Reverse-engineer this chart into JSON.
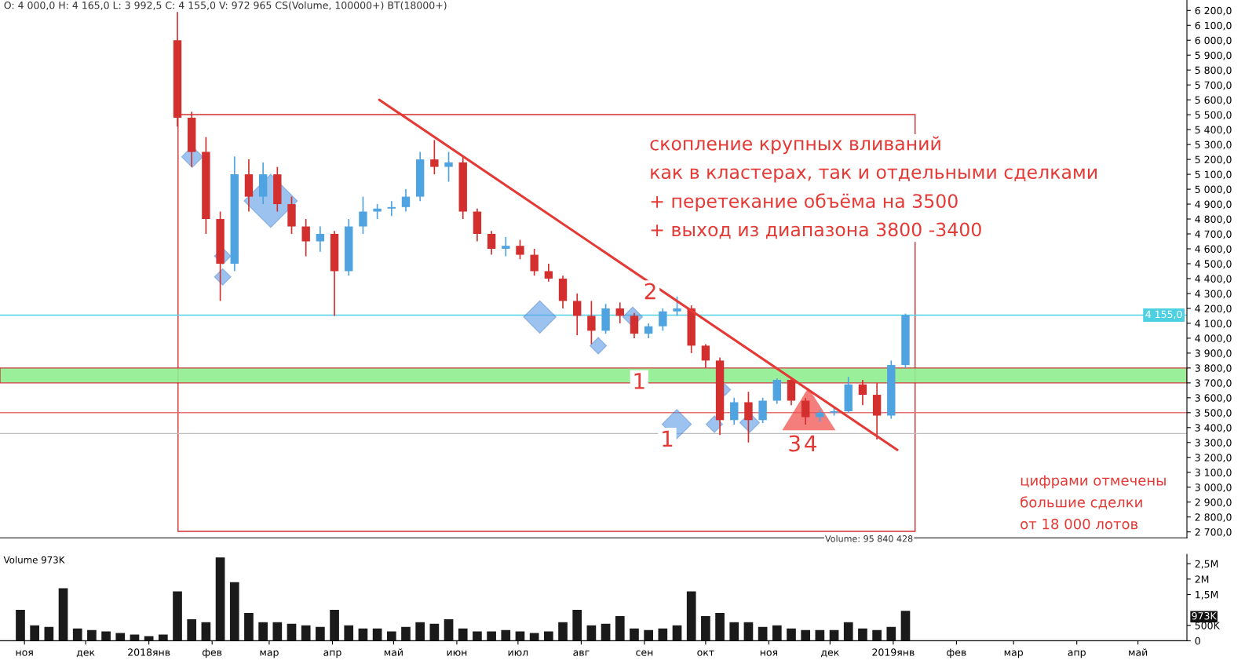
{
  "chart_data": [
    {
      "type": "candlestick",
      "x": [
        "2018-01-15",
        "2018-01-22",
        "2018-01-29",
        "2018-02-05",
        "2018-02-12",
        "2018-02-19",
        "2018-02-26",
        "2018-03-05",
        "2018-03-12",
        "2018-03-19",
        "2018-03-26",
        "2018-04-02",
        "2018-04-09",
        "2018-04-16",
        "2018-04-23",
        "2018-04-30",
        "2018-05-07",
        "2018-05-14",
        "2018-05-21",
        "2018-05-28",
        "2018-06-04",
        "2018-06-11",
        "2018-06-18",
        "2018-06-25",
        "2018-07-02",
        "2018-07-09",
        "2018-07-16",
        "2018-07-23",
        "2018-07-30",
        "2018-08-06",
        "2018-08-13",
        "2018-08-20",
        "2018-08-27",
        "2018-09-03",
        "2018-09-10",
        "2018-09-17",
        "2018-09-24",
        "2018-10-01",
        "2018-10-08",
        "2018-10-15",
        "2018-10-22",
        "2018-10-29",
        "2018-11-05",
        "2018-11-12",
        "2018-11-19",
        "2018-11-26",
        "2018-12-03",
        "2018-12-10",
        "2018-12-17",
        "2018-12-24",
        "2018-12-31",
        "2019-01-07"
      ],
      "ohlc": [
        [
          6000,
          6190,
          5420,
          5480
        ],
        [
          5480,
          5520,
          5150,
          5250
        ],
        [
          5250,
          5350,
          4700,
          4800
        ],
        [
          4800,
          4850,
          4250,
          4500
        ],
        [
          4500,
          5220,
          4450,
          5100
        ],
        [
          5100,
          5200,
          4850,
          4950
        ],
        [
          4950,
          5180,
          4900,
          5100
        ],
        [
          5100,
          5150,
          4850,
          4900
        ],
        [
          4900,
          4950,
          4700,
          4750
        ],
        [
          4750,
          4800,
          4550,
          4650
        ],
        [
          4650,
          4750,
          4580,
          4700
        ],
        [
          4700,
          4720,
          4150,
          4450
        ],
        [
          4450,
          4800,
          4420,
          4750
        ],
        [
          4750,
          4950,
          4700,
          4850
        ],
        [
          4850,
          4900,
          4800,
          4870
        ],
        [
          4870,
          4920,
          4820,
          4880
        ],
        [
          4880,
          5000,
          4850,
          4950
        ],
        [
          4950,
          5250,
          4920,
          5200
        ],
        [
          5200,
          5330,
          5100,
          5150
        ],
        [
          5150,
          5250,
          5050,
          5180
        ],
        [
          5180,
          5220,
          4800,
          4850
        ],
        [
          4850,
          4870,
          4650,
          4700
        ],
        [
          4700,
          4720,
          4560,
          4600
        ],
        [
          4600,
          4680,
          4550,
          4620
        ],
        [
          4620,
          4660,
          4530,
          4560
        ],
        [
          4560,
          4600,
          4420,
          4450
        ],
        [
          4450,
          4500,
          4380,
          4400
        ],
        [
          4400,
          4420,
          4200,
          4250
        ],
        [
          4250,
          4300,
          4020,
          4150
        ],
        [
          4150,
          4250,
          3960,
          4050
        ],
        [
          4050,
          4230,
          4030,
          4200
        ],
        [
          4200,
          4240,
          4100,
          4150
        ],
        [
          4150,
          4170,
          4000,
          4030
        ],
        [
          4030,
          4100,
          4000,
          4080
        ],
        [
          4080,
          4200,
          4050,
          4180
        ],
        [
          4180,
          4280,
          4150,
          4200
        ],
        [
          4200,
          4220,
          3900,
          3950
        ],
        [
          3950,
          3960,
          3800,
          3850
        ],
        [
          3850,
          3870,
          3350,
          3450
        ],
        [
          3450,
          3600,
          3420,
          3570
        ],
        [
          3570,
          3640,
          3300,
          3450
        ],
        [
          3450,
          3600,
          3430,
          3580
        ],
        [
          3580,
          3730,
          3560,
          3720
        ],
        [
          3720,
          3730,
          3550,
          3580
        ],
        [
          3580,
          3600,
          3420,
          3470
        ],
        [
          3470,
          3520,
          3440,
          3500
        ],
        [
          3500,
          3530,
          3480,
          3510
        ],
        [
          3510,
          3740,
          3500,
          3690
        ],
        [
          3690,
          3720,
          3550,
          3620
        ],
        [
          3620,
          3700,
          3320,
          3480
        ],
        [
          3480,
          3850,
          3460,
          3820
        ],
        [
          3820,
          4165,
          3800,
          4155
        ]
      ],
      "colors": [
        "#d32f2f",
        "#d32f2f",
        "#d32f2f",
        "#d32f2f",
        "#4fa3e0",
        "#d32f2f",
        "#4fa3e0",
        "#d32f2f",
        "#d32f2f",
        "#d32f2f",
        "#4fa3e0",
        "#d32f2f",
        "#4fa3e0",
        "#4fa3e0",
        "#4fa3e0",
        "#4fa3e0",
        "#4fa3e0",
        "#4fa3e0",
        "#d32f2f",
        "#4fa3e0",
        "#d32f2f",
        "#d32f2f",
        "#d32f2f",
        "#4fa3e0",
        "#d32f2f",
        "#d32f2f",
        "#d32f2f",
        "#d32f2f",
        "#d32f2f",
        "#d32f2f",
        "#4fa3e0",
        "#d32f2f",
        "#d32f2f",
        "#4fa3e0",
        "#4fa3e0",
        "#4fa3e0",
        "#d32f2f",
        "#d32f2f",
        "#d32f2f",
        "#4fa3e0",
        "#d32f2f",
        "#4fa3e0",
        "#4fa3e0",
        "#d32f2f",
        "#d32f2f",
        "#4fa3e0",
        "#4fa3e0",
        "#4fa3e0",
        "#d32f2f",
        "#d32f2f",
        "#4fa3e0",
        "#4fa3e0"
      ],
      "series": [
        {
          "type": "line",
          "color": "#e53935",
          "x": [
            "2018-04-24",
            "2019-01-03"
          ],
          "values": [
            5600,
            3250
          ]
        }
      ],
      "xlim": [
        "2017-10-20",
        "2019-05-25"
      ],
      "ylim": [
        2660,
        6270
      ],
      "yticks": [
        {
          "value": 2700,
          "label": "2 700,0"
        },
        {
          "value": 2800,
          "label": "2 800,0"
        },
        {
          "value": 2900,
          "label": "2 900,0"
        },
        {
          "value": 3000,
          "label": "3 000,0"
        },
        {
          "value": 3100,
          "label": "3 100,0"
        },
        {
          "value": 3200,
          "label": "3 200,0"
        },
        {
          "value": 3300,
          "label": "3 300,0"
        },
        {
          "value": 3400,
          "label": "3 400,0"
        },
        {
          "value": 3500,
          "label": "3 500,0"
        },
        {
          "value": 3600,
          "label": "3 600,0"
        },
        {
          "value": 3700,
          "label": "3 700,0"
        },
        {
          "value": 3800,
          "label": "3 800,0"
        },
        {
          "value": 3900,
          "label": "3 900,0"
        },
        {
          "value": 4000,
          "label": "4 000,0"
        },
        {
          "value": 4100,
          "label": "4 100,0"
        },
        {
          "value": 4200,
          "label": "4 200,0"
        },
        {
          "value": 4300,
          "label": "4 300,0"
        },
        {
          "value": 4400,
          "label": "4 400,0"
        },
        {
          "value": 4500,
          "label": "4 500,0"
        },
        {
          "value": 4600,
          "label": "4 600,0"
        },
        {
          "value": 4700,
          "label": "4 700,0"
        },
        {
          "value": 4800,
          "label": "4 800,0"
        },
        {
          "value": 4900,
          "label": "4 900,0"
        },
        {
          "value": 5000,
          "label": "5 000,0"
        },
        {
          "value": 5100,
          "label": "5 100,0"
        },
        {
          "value": 5200,
          "label": "5 200,0"
        },
        {
          "value": 5300,
          "label": "5 300,0"
        },
        {
          "value": 5400,
          "label": "5 400,0"
        },
        {
          "value": 5500,
          "label": "5 500,0"
        },
        {
          "value": 5600,
          "label": "5 600,0"
        },
        {
          "value": 5700,
          "label": "5 700,0"
        },
        {
          "value": 5800,
          "label": "5 800,0"
        },
        {
          "value": 5900,
          "label": "5 900,0"
        },
        {
          "value": 6000,
          "label": "6 000,0"
        },
        {
          "value": 6100,
          "label": "6 100,0"
        },
        {
          "value": 6200,
          "label": "6 200,0"
        }
      ],
      "tick_labels": "y",
      "grid": false,
      "ref_lines": [
        {
          "axis": "y",
          "value": 3500,
          "color": "#e57373"
        },
        {
          "axis": "y",
          "value": 3360,
          "color": "#bdbdbd"
        },
        {
          "axis": "y",
          "value": 4155,
          "color": "#4dd0e1",
          "label": "4 155,0"
        }
      ],
      "bands": [
        {
          "axis": "y",
          "from": 3700,
          "to": 3800,
          "color": "#90ee90"
        }
      ],
      "annotations": [
        "O: 4 000,0 H: 4 165,0 L: 3 992,5 C: 4 155,0 V: 972 965 CS(Volume, 100000+) BT(18000+)",
        "скопление крупных вливаний\nкак в кластерах, так и отдельными сделками\n+ перетекание объёма на 3500\n+ выход из диапазона 3800 -3400",
        "цифрами отмечены\nбольшие сделки\nот 18 000 лотов",
        "Volume: 95 840 428",
        "1",
        "2",
        "1",
        "3",
        "4"
      ]
    },
    {
      "type": "bar",
      "title": "Volume 973K",
      "x": [
        "2017-10-30",
        "2017-11-06",
        "2017-11-13",
        "2017-11-20",
        "2017-11-27",
        "2017-12-04",
        "2017-12-11",
        "2017-12-18",
        "2017-12-25",
        "2018-01-01",
        "2018-01-08",
        "2018-01-15",
        "2018-01-22",
        "2018-01-29",
        "2018-02-05",
        "2018-02-12",
        "2018-02-19",
        "2018-02-26",
        "2018-03-05",
        "2018-03-12",
        "2018-03-19",
        "2018-03-26",
        "2018-04-02",
        "2018-04-09",
        "2018-04-16",
        "2018-04-23",
        "2018-04-30",
        "2018-05-07",
        "2018-05-14",
        "2018-05-21",
        "2018-05-28",
        "2018-06-04",
        "2018-06-11",
        "2018-06-18",
        "2018-06-25",
        "2018-07-02",
        "2018-07-09",
        "2018-07-16",
        "2018-07-23",
        "2018-07-30",
        "2018-08-06",
        "2018-08-13",
        "2018-08-20",
        "2018-08-27",
        "2018-09-03",
        "2018-09-10",
        "2018-09-17",
        "2018-09-24",
        "2018-10-01",
        "2018-10-08",
        "2018-10-15",
        "2018-10-22",
        "2018-10-29",
        "2018-11-05",
        "2018-11-12",
        "2018-11-19",
        "2018-11-26",
        "2018-12-03",
        "2018-12-10",
        "2018-12-17",
        "2018-12-24",
        "2018-12-31",
        "2019-01-07"
      ],
      "values": [
        1000000,
        500000,
        450000,
        1700000,
        400000,
        350000,
        300000,
        250000,
        200000,
        150000,
        200000,
        1600000,
        700000,
        600000,
        2700000,
        1900000,
        900000,
        600000,
        600000,
        550000,
        500000,
        450000,
        1000000,
        500000,
        400000,
        400000,
        300000,
        450000,
        600000,
        550000,
        700000,
        400000,
        300000,
        300000,
        350000,
        300000,
        250000,
        300000,
        600000,
        1000000,
        500000,
        550000,
        800000,
        400000,
        350000,
        400000,
        500000,
        1600000,
        800000,
        900000,
        600000,
        600000,
        450000,
        500000,
        400000,
        350000,
        350000,
        350000,
        600000,
        400000,
        350000,
        450000,
        970000
      ],
      "color": "#1a1a1a",
      "xlim": [
        "2017-10-20",
        "2019-05-25"
      ],
      "xticks": [
        {
          "value": "2017-11-01",
          "label": "ноя"
        },
        {
          "value": "2017-12-01",
          "label": "дек"
        },
        {
          "value": "2018-01-01",
          "label": "2018янв"
        },
        {
          "value": "2018-02-01",
          "label": "фев"
        },
        {
          "value": "2018-03-01",
          "label": "мар"
        },
        {
          "value": "2018-04-01",
          "label": "апр"
        },
        {
          "value": "2018-05-01",
          "label": "май"
        },
        {
          "value": "2018-06-01",
          "label": "июн"
        },
        {
          "value": "2018-07-01",
          "label": "июл"
        },
        {
          "value": "2018-08-01",
          "label": "авг"
        },
        {
          "value": "2018-09-01",
          "label": "сен"
        },
        {
          "value": "2018-10-01",
          "label": "окт"
        },
        {
          "value": "2018-11-01",
          "label": "ноя"
        },
        {
          "value": "2018-12-01",
          "label": "дек"
        },
        {
          "value": "2019-01-01",
          "label": "2019янв"
        },
        {
          "value": "2019-02-01",
          "label": "фев"
        },
        {
          "value": "2019-03-01",
          "label": "мар"
        },
        {
          "value": "2019-04-01",
          "label": "апр"
        },
        {
          "value": "2019-05-01",
          "label": "май"
        }
      ],
      "ylim": [
        0,
        2800000
      ],
      "yticks": [
        {
          "value": 0,
          "label": "0"
        },
        {
          "value": 500000,
          "label": "500K"
        },
        {
          "value": 1500000,
          "label": "1,5M"
        },
        {
          "value": 2000000,
          "label": "2M"
        },
        {
          "value": 2500000,
          "label": "2,5M"
        }
      ],
      "grid": false,
      "annotations": [
        "973K"
      ]
    }
  ]
}
